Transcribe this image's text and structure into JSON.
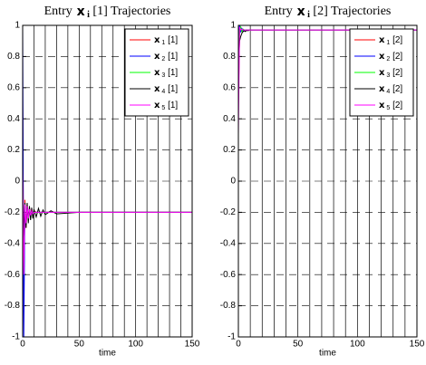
{
  "chart_data": [
    {
      "type": "line",
      "title": "Entry x i [1] Trajectories",
      "x_label": "time",
      "x": [
        0,
        1,
        2,
        3,
        4,
        5,
        6,
        7,
        8,
        9,
        10,
        12,
        14,
        16,
        18,
        20,
        25,
        30,
        40,
        50,
        75,
        100,
        150
      ],
      "series": [
        {
          "name": "x 1 [1]",
          "color": "#ff0000",
          "values": [
            0.5,
            -0.7,
            -0.12,
            -0.3,
            -0.15,
            -0.24,
            -0.17,
            -0.22,
            -0.18,
            -0.21,
            -0.19,
            -0.2,
            -0.2,
            -0.2,
            -0.2,
            -0.2,
            -0.2,
            -0.2,
            -0.2,
            -0.2,
            -0.2,
            -0.2,
            -0.2
          ]
        },
        {
          "name": "x 2 [1]",
          "color": "#0000ff",
          "values": [
            1,
            -1,
            -0.15,
            -0.28,
            -0.16,
            -0.23,
            -0.18,
            -0.21,
            -0.19,
            -0.2,
            -0.2,
            -0.2,
            -0.2,
            -0.2,
            -0.2,
            -0.2,
            -0.2,
            -0.2,
            -0.2,
            -0.2,
            -0.2,
            -0.2,
            -0.2
          ]
        },
        {
          "name": "x 3 [1]",
          "color": "#00ff00",
          "values": [
            -0.05,
            -0.5,
            -0.14,
            -0.26,
            -0.17,
            -0.23,
            -0.18,
            -0.21,
            -0.19,
            -0.205,
            -0.2,
            -0.2,
            -0.2,
            -0.2,
            -0.2,
            -0.2,
            -0.2,
            -0.2,
            -0.2,
            -0.2,
            -0.2,
            -0.2,
            -0.2
          ]
        },
        {
          "name": "x 4 [1]",
          "color": "#000000",
          "values": [
            -0.1,
            -0.35,
            -0.14,
            -0.3,
            -0.14,
            -0.27,
            -0.16,
            -0.25,
            -0.17,
            -0.24,
            -0.18,
            -0.23,
            -0.175,
            -0.225,
            -0.185,
            -0.215,
            -0.19,
            -0.21,
            -0.205,
            -0.2,
            -0.2,
            -0.2,
            -0.2
          ]
        },
        {
          "name": "x 5 [1]",
          "color": "#ff00ff",
          "values": [
            0.1,
            -0.6,
            -0.15,
            -0.27,
            -0.16,
            -0.24,
            -0.18,
            -0.22,
            -0.19,
            -0.21,
            -0.2,
            -0.2,
            -0.2,
            -0.2,
            -0.2,
            -0.2,
            -0.2,
            -0.2,
            -0.2,
            -0.2,
            -0.2,
            -0.2,
            -0.2
          ]
        }
      ],
      "xlim": [
        0,
        150
      ],
      "ylim": [
        -1,
        1
      ],
      "xticks": [
        0,
        {
          "value": 10,
          "label": null
        },
        {
          "value": 20,
          "label": null
        },
        {
          "value": 30,
          "label": null
        },
        {
          "value": 40,
          "label": null
        },
        50,
        {
          "value": 60,
          "label": null
        },
        {
          "value": 70,
          "label": null
        },
        {
          "value": 80,
          "label": null
        },
        {
          "value": 90,
          "label": null
        },
        100,
        {
          "value": 110,
          "label": null
        },
        {
          "value": 120,
          "label": null
        },
        {
          "value": 130,
          "label": null
        },
        {
          "value": 140,
          "label": null
        },
        150
      ],
      "yticks": [
        -1,
        -0.8,
        -0.6,
        -0.4,
        -0.2,
        0,
        0.2,
        0.4,
        0.6,
        0.8,
        1
      ],
      "grid": true,
      "legend": "upper right"
    },
    {
      "type": "line",
      "title": "Entry x i [2] Trajectories",
      "x_label": "time",
      "x": [
        0,
        1,
        2,
        3,
        4,
        5,
        6,
        7,
        8,
        9,
        10,
        12,
        14,
        16,
        18,
        20,
        25,
        30,
        40,
        50,
        75,
        100,
        150
      ],
      "series": [
        {
          "name": "x 1 [2]",
          "color": "#ff0000",
          "values": [
            0.5,
            0.95,
            0.98,
            0.96,
            0.975,
            0.97,
            0.97,
            0.97,
            0.97,
            0.97,
            0.97,
            0.97,
            0.97,
            0.97,
            0.97,
            0.97,
            0.97,
            0.97,
            0.97,
            0.97,
            0.97,
            0.97,
            0.97
          ]
        },
        {
          "name": "x 2 [2]",
          "color": "#0000ff",
          "values": [
            0.9,
            1,
            0.96,
            0.98,
            0.965,
            0.97,
            0.97,
            0.97,
            0.97,
            0.97,
            0.97,
            0.97,
            0.97,
            0.97,
            0.97,
            0.97,
            0.97,
            0.97,
            0.97,
            0.97,
            0.97,
            0.97,
            0.97
          ]
        },
        {
          "name": "x 3 [2]",
          "color": "#00ff00",
          "values": [
            0.6,
            0.97,
            0.99,
            0.96,
            0.975,
            0.97,
            0.97,
            0.97,
            0.97,
            0.97,
            0.97,
            0.97,
            0.97,
            0.97,
            0.97,
            0.97,
            0.97,
            0.97,
            0.97,
            0.97,
            0.97,
            0.97,
            0.97
          ]
        },
        {
          "name": "x 4 [2]",
          "color": "#000000",
          "values": [
            0.7,
            0.9,
            0.93,
            0.95,
            0.96,
            0.965,
            0.96,
            0.97,
            0.965,
            0.97,
            0.97,
            0.97,
            0.97,
            0.97,
            0.97,
            0.97,
            0.97,
            0.97,
            0.97,
            0.97,
            0.97,
            0.97,
            0.97
          ]
        },
        {
          "name": "x 5 [2]",
          "color": "#ff00ff",
          "values": [
            0.3,
            0.99,
            0.97,
            0.975,
            0.97,
            0.97,
            0.97,
            0.97,
            0.97,
            0.97,
            0.97,
            0.97,
            0.97,
            0.97,
            0.97,
            0.97,
            0.97,
            0.97,
            0.97,
            0.97,
            0.97,
            0.97,
            0.97
          ]
        }
      ],
      "xlim": [
        0,
        150
      ],
      "ylim": [
        -1,
        1
      ],
      "xticks": [
        0,
        {
          "value": 10,
          "label": null
        },
        {
          "value": 20,
          "label": null
        },
        {
          "value": 30,
          "label": null
        },
        {
          "value": 40,
          "label": null
        },
        50,
        {
          "value": 60,
          "label": null
        },
        {
          "value": 70,
          "label": null
        },
        {
          "value": 80,
          "label": null
        },
        {
          "value": 90,
          "label": null
        },
        100,
        {
          "value": 110,
          "label": null
        },
        {
          "value": 120,
          "label": null
        },
        {
          "value": 130,
          "label": null
        },
        {
          "value": 140,
          "label": null
        },
        150
      ],
      "yticks": [
        -1,
        -0.8,
        -0.6,
        -0.4,
        -0.2,
        0,
        0.2,
        0.4,
        0.6,
        0.8,
        1
      ],
      "grid": true,
      "legend": "upper right"
    }
  ]
}
